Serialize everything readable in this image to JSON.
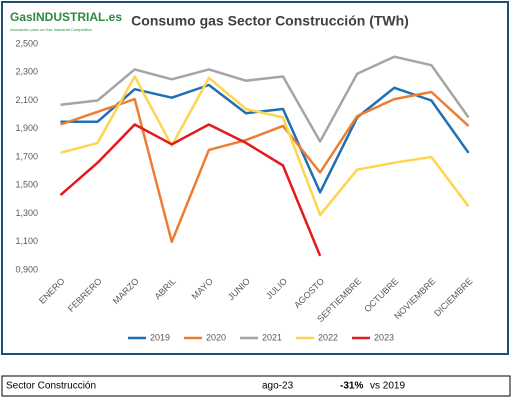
{
  "logo": {
    "name": "GasINDUSTRIAL.es",
    "tagline": "Asociación para un Gas Industrial Competitivo"
  },
  "chart_data": {
    "type": "line",
    "title": "Consumo gas Sector Construcción (TWh)",
    "categories": [
      "ENERO",
      "FEBRERO",
      "MARZO",
      "ABRIL",
      "MAYO",
      "JUNIO",
      "JULIO",
      "AGOSTO",
      "SEPTIEMBRE",
      "OCTUBRE",
      "NOVIEMBRE",
      "DICIEMBRE"
    ],
    "series": [
      {
        "name": "2019",
        "color": "#1f6fb4",
        "values": [
          1.95,
          1.95,
          2.18,
          2.12,
          2.21,
          2.01,
          2.04,
          1.45,
          1.98,
          2.19,
          2.1,
          1.73
        ]
      },
      {
        "name": "2020",
        "color": "#ed7d31",
        "values": [
          1.93,
          2.02,
          2.11,
          1.1,
          1.75,
          1.82,
          1.92,
          1.59,
          1.99,
          2.11,
          2.16,
          1.92
        ]
      },
      {
        "name": "2021",
        "color": "#a5a5a5",
        "values": [
          2.07,
          2.1,
          2.32,
          2.25,
          2.32,
          2.24,
          2.27,
          1.81,
          2.29,
          2.41,
          2.35,
          1.98
        ]
      },
      {
        "name": "2022",
        "color": "#ffd44f",
        "values": [
          1.73,
          1.8,
          2.27,
          1.78,
          2.26,
          2.04,
          1.98,
          1.29,
          1.61,
          1.66,
          1.7,
          1.35
        ]
      },
      {
        "name": "2023",
        "color": "#e31a1c",
        "values": [
          1.43,
          1.66,
          1.93,
          1.79,
          1.93,
          1.8,
          1.64,
          1.0,
          null,
          null,
          null,
          null
        ]
      }
    ],
    "ylim": [
      0.9,
      2.5
    ],
    "yticks": [
      {
        "value": 0.9,
        "label": "0,900"
      },
      {
        "value": 1.1,
        "label": "1,100"
      },
      {
        "value": 1.3,
        "label": "1,300"
      },
      {
        "value": 1.5,
        "label": "1,500"
      },
      {
        "value": 1.7,
        "label": "1,700"
      },
      {
        "value": 1.9,
        "label": "1,900"
      },
      {
        "value": 2.1,
        "label": "2,100"
      },
      {
        "value": 2.3,
        "label": "2,300"
      },
      {
        "value": 2.5,
        "label": "2,500"
      }
    ],
    "grid": false,
    "legend": "bottom"
  },
  "table": {
    "rows": [
      [
        "Sector Construcción",
        "ago-23",
        "-31%",
        "vs 2019"
      ]
    ]
  }
}
